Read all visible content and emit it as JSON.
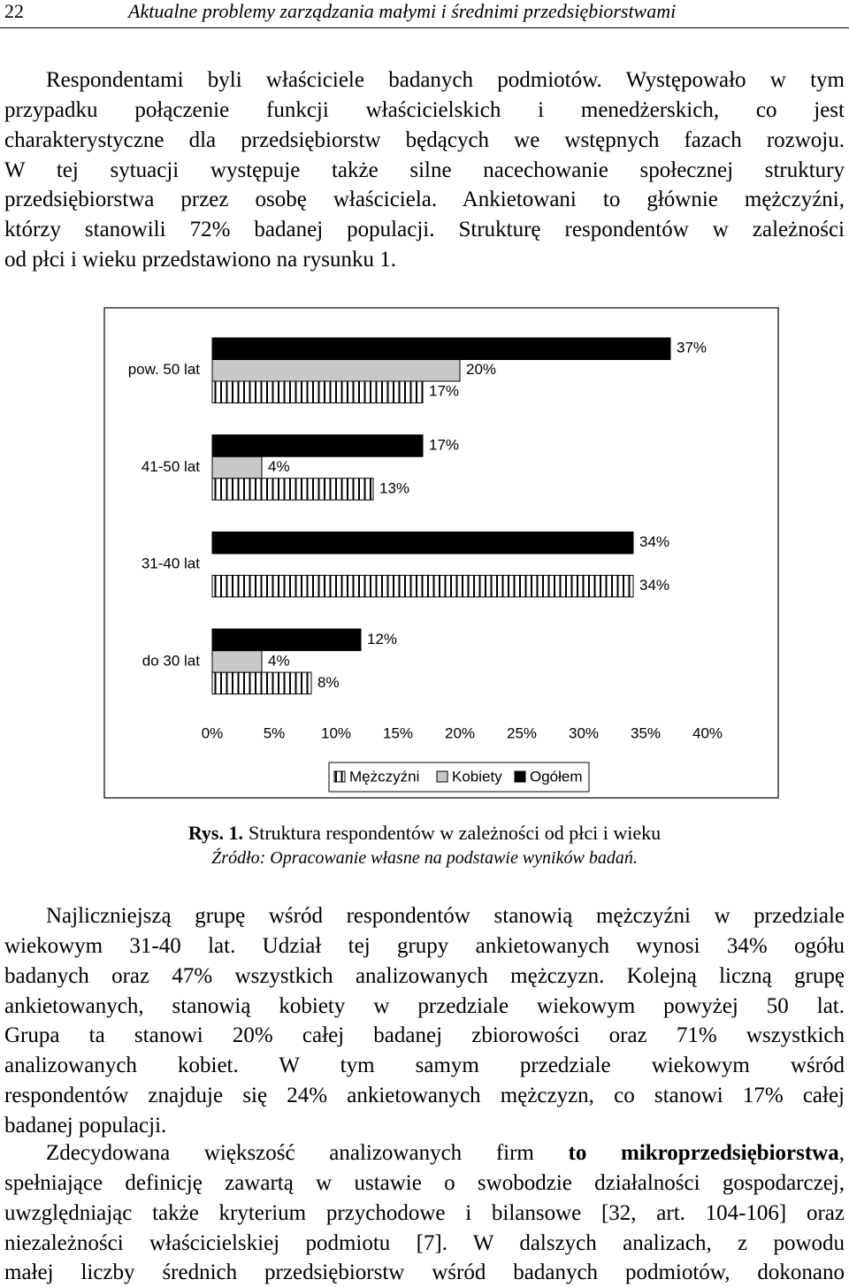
{
  "header": {
    "page_number": "22",
    "title": "Aktualne problemy zarządzania małymi i średnimi przedsiębiorstwami"
  },
  "paragraphs": [
    {
      "lines": [
        "Respondentami byli właściciele badanych podmiotów. Występowało w tym",
        "przypadku połączenie funkcji właścicielskich i menedżerskich, co jest",
        "charakterystyczne dla przedsiębiorstw będących we wstępnych fazach rozwoju.",
        "W tej sytuacji występuje także silne nacechowanie społecznej struktury",
        "przedsiębiorstwa przez osobę właściciela. Ankietowani to głównie mężczyźni,",
        "którzy stanowili 72% badanej populacji. Strukturę respondentów w zależności",
        "od płci i wieku przedstawiono na  rysunku 1."
      ]
    },
    {
      "lines": [
        "Najliczniejszą grupę wśród respondentów stanowią mężczyźni w przedziale",
        "wiekowym 31-40 lat. Udział tej grupy ankietowanych wynosi 34% ogółu",
        "badanych oraz 47% wszystkich analizowanych mężczyzn. Kolejną liczną grupę",
        "ankietowanych, stanowią kobiety w przedziale wiekowym powyżej 50 lat.",
        "Grupa ta stanowi 20% całej badanej zbiorowości oraz 71% wszystkich",
        "analizowanych kobiet. W tym samym przedziale wiekowym wśród",
        "respondentów znajduje się 24% ankietowanych mężczyzn, co stanowi 17% całej",
        "badanej populacji."
      ]
    },
    {
      "lines": [
        [
          "Zdecydowana większość analizowanych firm ",
          "to mikroprzedsiębiorstwa",
          ","
        ],
        "spełniające definicję zawartą w ustawie o swobodzie działalności gospodarczej,",
        "uwzględniając także kryterium przychodowe i bilansowe [32, art. 104-106] oraz",
        "niezależności właścicielskiej podmiotu [7]. W dalszych analizach, z powodu",
        "małej liczby średnich przedsiębiorstw wśród badanych podmiotów, dokonano"
      ]
    }
  ],
  "figure": {
    "caption_label": "Rys. 1.",
    "caption": "Struktura respondentów w zależności od płci i wieku",
    "source": "Źródło: Opracowanie własne na podstawie wyników badań."
  },
  "chart_data": {
    "type": "bar",
    "orientation": "horizontal",
    "categories": [
      "pow. 50 lat",
      "41-50 lat",
      "31-40 lat",
      "do 30 lat"
    ],
    "series": [
      {
        "name": "Mężczyźni",
        "color": "#000000",
        "pattern": "vertical-hatch",
        "values": [
          17,
          13,
          34,
          8
        ],
        "value_labels": [
          "17%",
          "13%",
          "34%",
          "8%"
        ]
      },
      {
        "name": "Kobiety",
        "color": "#c8c8c8",
        "values": [
          20,
          4,
          null,
          4
        ],
        "value_labels": [
          "20%",
          "4%",
          null,
          "4%"
        ]
      },
      {
        "name": "Ogółem",
        "color": "#000000",
        "values": [
          37,
          17,
          34,
          12
        ],
        "value_labels": [
          "37%",
          "17%",
          "34%",
          "12%"
        ]
      }
    ],
    "xlim": [
      0,
      40
    ],
    "xticks": [
      {
        "value": 0,
        "label": "0%"
      },
      {
        "value": 5,
        "label": "5%"
      },
      {
        "value": 10,
        "label": "10%"
      },
      {
        "value": 15,
        "label": "15%"
      },
      {
        "value": 20,
        "label": "20%"
      },
      {
        "value": 25,
        "label": "25%"
      },
      {
        "value": 30,
        "label": "30%"
      },
      {
        "value": 35,
        "label": "35%"
      },
      {
        "value": 40,
        "label": "40%"
      }
    ],
    "grid": false,
    "legend": "bottom"
  }
}
